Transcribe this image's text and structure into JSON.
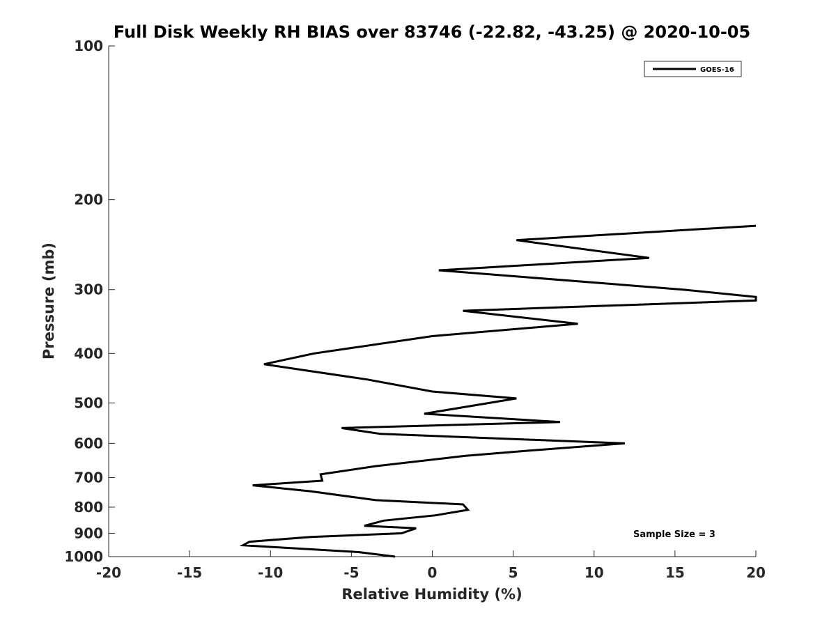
{
  "chart_data": {
    "type": "line",
    "title": "Full Disk Weekly RH BIAS over 83746 (-22.82, -43.25) @ 2020-10-05",
    "xlabel": "Relative Humidity (%)",
    "ylabel": "Pressure (mb)",
    "xlim": [
      -20,
      20
    ],
    "ylim": [
      100,
      1000
    ],
    "y_scale": "log",
    "y_reversed": true,
    "grid": false,
    "legend_position": "top-right",
    "x_ticks": [
      "-20",
      "-15",
      "-10",
      "-5",
      "0",
      "5",
      "10",
      "15",
      "20"
    ],
    "y_ticks": [
      "100",
      "200",
      "300",
      "400",
      "500",
      "600",
      "700",
      "800",
      "900",
      "1000"
    ],
    "series": [
      {
        "name": "GOES-16",
        "color": "#000000",
        "points": [
          {
            "x": 20.0,
            "y": 225
          },
          {
            "x": 5.2,
            "y": 240
          },
          {
            "x": 13.4,
            "y": 260
          },
          {
            "x": 0.4,
            "y": 275
          },
          {
            "x": 15.5,
            "y": 300
          },
          {
            "x": 20.0,
            "y": 310
          },
          {
            "x": 20.0,
            "y": 315
          },
          {
            "x": 1.9,
            "y": 330
          },
          {
            "x": 9.0,
            "y": 350
          },
          {
            "x": 0.0,
            "y": 370
          },
          {
            "x": -7.3,
            "y": 400
          },
          {
            "x": -10.4,
            "y": 420
          },
          {
            "x": -4.0,
            "y": 450
          },
          {
            "x": 0.0,
            "y": 475
          },
          {
            "x": 5.2,
            "y": 490
          },
          {
            "x": -0.5,
            "y": 525
          },
          {
            "x": 7.9,
            "y": 545
          },
          {
            "x": -5.6,
            "y": 560
          },
          {
            "x": -3.2,
            "y": 575
          },
          {
            "x": 11.9,
            "y": 600
          },
          {
            "x": 6.0,
            "y": 620
          },
          {
            "x": 2.0,
            "y": 635
          },
          {
            "x": -3.5,
            "y": 665
          },
          {
            "x": -6.9,
            "y": 690
          },
          {
            "x": -6.8,
            "y": 710
          },
          {
            "x": -11.1,
            "y": 725
          },
          {
            "x": -7.5,
            "y": 745
          },
          {
            "x": -3.5,
            "y": 775
          },
          {
            "x": 1.9,
            "y": 790
          },
          {
            "x": 2.2,
            "y": 810
          },
          {
            "x": 0.2,
            "y": 830
          },
          {
            "x": -3.0,
            "y": 850
          },
          {
            "x": -4.2,
            "y": 870
          },
          {
            "x": -1.0,
            "y": 880
          },
          {
            "x": -1.9,
            "y": 900
          },
          {
            "x": -7.5,
            "y": 915
          },
          {
            "x": -11.3,
            "y": 935
          },
          {
            "x": -11.7,
            "y": 950
          },
          {
            "x": -8.0,
            "y": 965
          },
          {
            "x": -4.5,
            "y": 980
          },
          {
            "x": -2.3,
            "y": 1000
          }
        ]
      }
    ],
    "annotation": "Sample Size = 3"
  }
}
